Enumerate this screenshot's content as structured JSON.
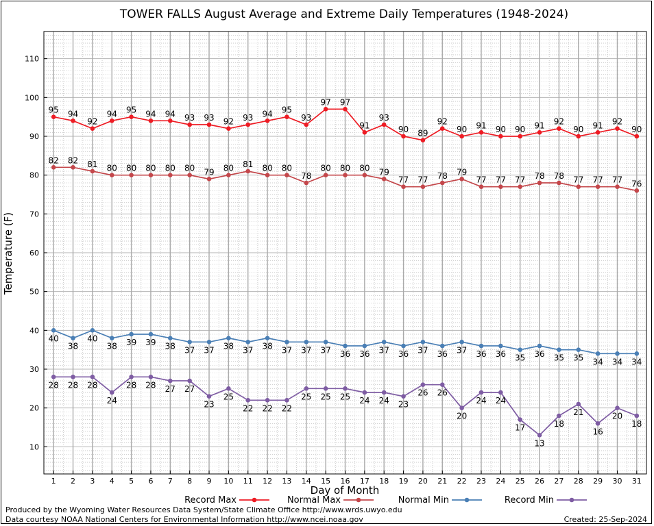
{
  "chart_data": {
    "type": "line",
    "title": "TOWER FALLS August Average and Extreme Daily Temperatures (1948-2024)",
    "xlabel": "Day of Month",
    "ylabel": "Temperature (F)",
    "x": [
      1,
      2,
      3,
      4,
      5,
      6,
      7,
      8,
      9,
      10,
      11,
      12,
      13,
      14,
      15,
      16,
      17,
      18,
      19,
      20,
      21,
      22,
      23,
      24,
      25,
      26,
      27,
      28,
      29,
      30,
      31
    ],
    "xlim": [
      0.5,
      31.5
    ],
    "ylim": [
      3,
      117
    ],
    "yticks": [
      10,
      20,
      30,
      40,
      50,
      60,
      70,
      80,
      90,
      100,
      110
    ],
    "grid": true,
    "legend_position": "bottom",
    "series": [
      {
        "name": "Record Max",
        "color": "#ee1c24",
        "values": [
          95,
          94,
          92,
          94,
          95,
          94,
          94,
          93,
          93,
          92,
          93,
          94,
          95,
          93,
          97,
          97,
          91,
          93,
          90,
          89,
          92,
          90,
          91,
          90,
          90,
          91,
          92,
          90,
          91,
          92,
          90
        ]
      },
      {
        "name": "Normal Max",
        "color": "#c4474b",
        "values": [
          82,
          82,
          81,
          80,
          80,
          80,
          80,
          80,
          79,
          80,
          81,
          80,
          80,
          78,
          80,
          80,
          80,
          79,
          77,
          77,
          78,
          79,
          77,
          77,
          77,
          78,
          78,
          77,
          77,
          77,
          76
        ]
      },
      {
        "name": "Normal Min",
        "color": "#4a7fb5",
        "values": [
          40,
          38,
          40,
          38,
          39,
          39,
          38,
          37,
          37,
          38,
          37,
          38,
          37,
          37,
          37,
          36,
          36,
          37,
          36,
          37,
          36,
          37,
          36,
          36,
          35,
          36,
          35,
          35,
          34,
          34,
          34
        ]
      },
      {
        "name": "Record Min",
        "color": "#7e5ca3",
        "values": [
          28,
          28,
          28,
          24,
          28,
          28,
          27,
          27,
          23,
          25,
          22,
          22,
          22,
          25,
          25,
          25,
          24,
          24,
          23,
          26,
          26,
          20,
          24,
          24,
          17,
          13,
          18,
          21,
          16,
          20,
          18
        ]
      }
    ]
  },
  "footer": {
    "producer": "Produced by the Wyoming Water Resources Data System/State Climate Office http://www.wrds.uwyo.edu",
    "courtesy": "Data courtesy NOAA National Centers for Environmental Information http://www.ncei.noaa.gov",
    "created": "Created:  25-Sep-2024"
  }
}
